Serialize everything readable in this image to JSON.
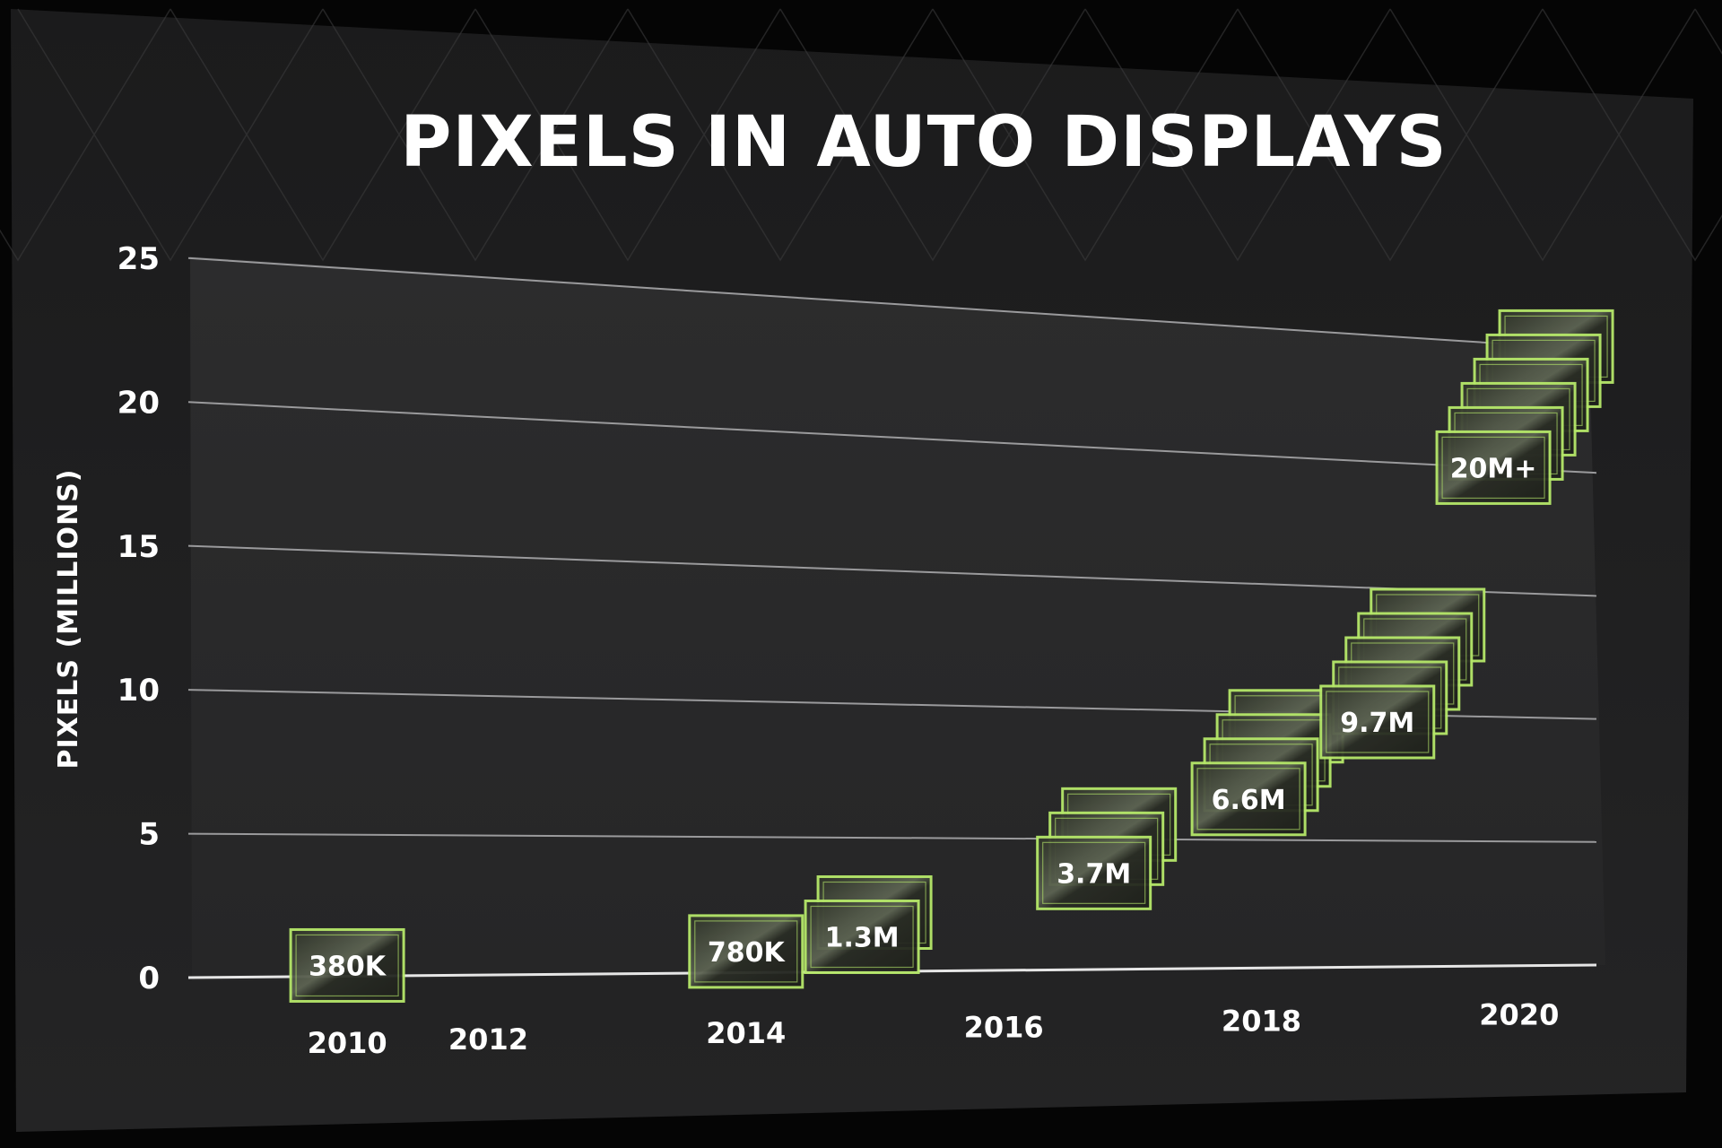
{
  "chart_data": {
    "type": "scatter",
    "title": "PIXELS IN AUTO DISPLAYS",
    "xlabel": "",
    "ylabel": "PIXELS (MILLIONS)",
    "x_ticks": [
      "2010",
      "2012",
      "2014",
      "2016",
      "2018",
      "2020"
    ],
    "y_ticks": [
      "0",
      "5",
      "10",
      "15",
      "20",
      "25"
    ],
    "xlim": [
      2009.7,
      2020.6
    ],
    "ylim": [
      0,
      25
    ],
    "grid": true,
    "marker_color": "#b6e86a",
    "points": [
      {
        "x": 2010,
        "y": 0.38,
        "label": "380K",
        "stack": 1
      },
      {
        "x": 2014,
        "y": 0.78,
        "label": "780K",
        "stack": 1
      },
      {
        "x": 2014.9,
        "y": 1.3,
        "label": "1.3M",
        "stack": 2
      },
      {
        "x": 2016.7,
        "y": 3.7,
        "label": "3.7M",
        "stack": 3
      },
      {
        "x": 2017.9,
        "y": 6.6,
        "label": "6.6M",
        "stack": 4
      },
      {
        "x": 2018.9,
        "y": 9.7,
        "label": "9.7M",
        "stack": 5
      },
      {
        "x": 2019.8,
        "y": 20,
        "label": "20M+",
        "stack": 6
      }
    ]
  }
}
